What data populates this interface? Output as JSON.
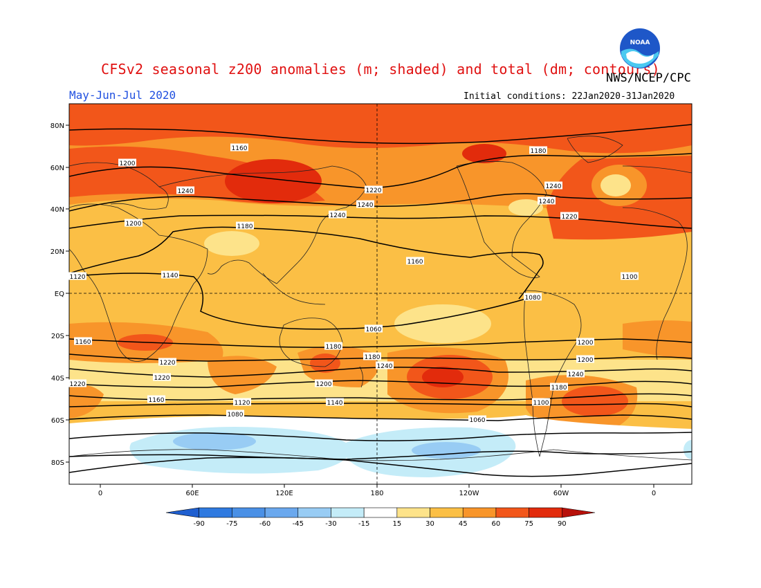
{
  "header": {
    "title": "CFSv2 seasonal z200 anomalies (m; shaded) and total (dm; contours)",
    "agency": "NWS/NCEP/CPC",
    "season": "May-Jun-Jul 2020",
    "initial_conditions": "Initial conditions: 22Jan2020-31Jan2020"
  },
  "logo": {
    "icon": "noaa-logo-icon",
    "text": "NOAA"
  },
  "map": {
    "lat_ticks": [
      "80N",
      "60N",
      "40N",
      "20N",
      "EQ",
      "20S",
      "40S",
      "60S",
      "80S"
    ],
    "lon_ticks": [
      "0",
      "60E",
      "120E",
      "180",
      "120W",
      "60W",
      "0"
    ],
    "contour_labels": [
      "1160",
      "1180",
      "1200",
      "1220",
      "1240",
      "1240",
      "1240",
      "1240",
      "1240",
      "1220",
      "1200",
      "1180",
      "1160",
      "1140",
      "1120",
      "1100",
      "1080",
      "1060",
      "1160",
      "1180",
      "1200",
      "1220",
      "1180",
      "1200",
      "1220",
      "1240",
      "1240",
      "1220",
      "1200",
      "1180",
      "1160",
      "1140",
      "1120",
      "1100",
      "1080",
      "1060"
    ]
  },
  "colorbar": {
    "levels": [
      "-90",
      "-75",
      "-60",
      "-45",
      "-30",
      "-15",
      "15",
      "30",
      "45",
      "60",
      "75",
      "90"
    ],
    "colors": [
      "#1f5fd0",
      "#2f7ae0",
      "#4a90e6",
      "#6aa8ee",
      "#98ccf4",
      "#c4ecf8",
      "#ffffff",
      "#fde38a",
      "#fbbf45",
      "#f8952a",
      "#f2561a",
      "#e22b0c",
      "#b7100a"
    ]
  },
  "shading": {
    "colors": {
      "p15": "#fde38a",
      "p30": "#fbbf45",
      "p45": "#f8952a",
      "p60": "#f2561a",
      "p75": "#e22b0c",
      "n15": "#c4ecf8",
      "n30": "#98ccf4",
      "white": "#ffffff"
    }
  }
}
